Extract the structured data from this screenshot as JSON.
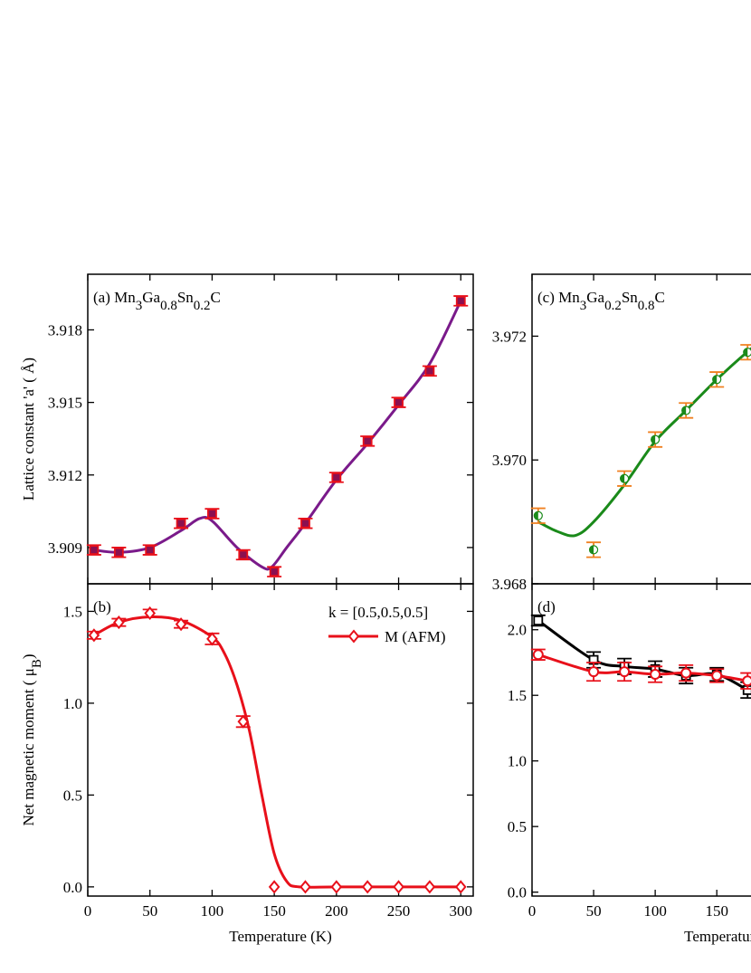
{
  "chart_data": [
    {
      "type": "scatter",
      "title_parts": [
        "(a) Mn",
        "3",
        "Ga",
        "0.8",
        "Sn",
        "0.2",
        "C"
      ],
      "ylabel": "Lattice constant 'a' ( Å)",
      "xlim": [
        0,
        310
      ],
      "xticks": [
        0,
        50,
        100,
        150,
        200,
        250,
        300
      ],
      "xtick_labels": false,
      "ylim": [
        3.9075,
        3.9203
      ],
      "yticks": [
        3.909,
        3.912,
        3.915,
        3.918
      ],
      "series": [
        {
          "color": "#e8101a",
          "marker": "square",
          "marker_fill": "#8b1050",
          "x": [
            5,
            25,
            50,
            75,
            100,
            125,
            150,
            175,
            200,
            225,
            250,
            275,
            300
          ],
          "values": [
            3.9089,
            3.9088,
            3.9089,
            3.91,
            3.9104,
            3.9087,
            3.908,
            3.91,
            3.9119,
            3.9134,
            3.915,
            3.9163,
            3.9192
          ],
          "errors": [
            0.0002,
            0.0002,
            0.0002,
            0.0002,
            0.0002,
            0.0002,
            0.0002,
            0.0002,
            0.0002,
            0.0002,
            0.0002,
            0.0002,
            0.0002
          ],
          "fit": {
            "color": "#7a1a8a",
            "x": [
              5,
              25,
              50,
              75,
              90,
              100,
              120,
              140,
              148,
              160,
              175,
              200,
              225,
              250,
              275,
              300
            ],
            "values": [
              3.9089,
              3.9088,
              3.909,
              3.9097,
              3.9102,
              3.9101,
              3.909,
              3.9082,
              3.9082,
              3.909,
              3.91,
              3.9118,
              3.9133,
              3.9149,
              3.9166,
              3.9192
            ]
          }
        }
      ]
    },
    {
      "type": "scatter",
      "title_parts": [
        "(b)"
      ],
      "ylabel_parts": [
        "Net magnetic moment ( μ",
        "B",
        ")"
      ],
      "xlabel": "Temperature (K)",
      "annotation": "k = [0.5,0.5,0.5]",
      "xlim": [
        0,
        310
      ],
      "xticks": [
        0,
        50,
        100,
        150,
        200,
        250,
        300
      ],
      "xtick_labels": true,
      "ylim": [
        -0.05,
        1.65
      ],
      "yticks": [
        {
          "value": 0,
          "label": "0.0"
        },
        0.5,
        {
          "value": 1,
          "label": "1.0"
        },
        1.5
      ],
      "series": [
        {
          "name": "M (AFM)",
          "color": "#e8101a",
          "marker": "diamond",
          "marker_fill": "#ffffff",
          "x": [
            5,
            25,
            50,
            75,
            100,
            125,
            150,
            175,
            200,
            225,
            250,
            275,
            300
          ],
          "values": [
            1.37,
            1.44,
            1.49,
            1.43,
            1.35,
            0.9,
            0,
            0,
            0,
            0,
            0,
            0,
            0
          ],
          "errors": [
            0.02,
            0.02,
            0.02,
            0.02,
            0.03,
            0.03,
            0,
            0,
            0,
            0,
            0,
            0,
            0
          ],
          "fit": {
            "color": "#e8101a",
            "x": [
              5,
              25,
              50,
              75,
              100,
              110,
              120,
              130,
              140,
              150,
              160,
              170,
              200,
              250,
              300
            ],
            "values": [
              1.37,
              1.44,
              1.47,
              1.45,
              1.36,
              1.27,
              1.1,
              0.85,
              0.5,
              0.18,
              0.03,
              0,
              0,
              0,
              0
            ]
          }
        }
      ]
    },
    {
      "type": "scatter",
      "title_parts": [
        "(c) Mn",
        "3",
        "Ga",
        "0.2",
        "Sn",
        "0.8",
        "C"
      ],
      "xlim": [
        0,
        310
      ],
      "xticks": [
        0,
        50,
        100,
        150
      ],
      "xtick_labels": false,
      "ylim": [
        3.968,
        3.973
      ],
      "yticks": [
        3.968,
        {
          "value": 3.97,
          "label": "3.970"
        },
        3.972
      ],
      "series": [
        {
          "color": "#f08020",
          "marker": "half-circle",
          "marker_fill": "#1a8a1a",
          "x": [
            5,
            50,
            75,
            100,
            125,
            150,
            175
          ],
          "values": [
            3.9691,
            3.96855,
            3.9697,
            3.97033,
            3.9708,
            3.9713,
            3.97174
          ],
          "errors": [
            0.00012,
            0.00012,
            0.00012,
            0.00012,
            0.00012,
            0.00012,
            0.00012
          ],
          "fit": {
            "color": "#1a8a1a",
            "x": [
              5,
              20,
              35,
              50,
              75,
              100,
              125,
              150,
              175,
              185
            ],
            "values": [
              3.969,
              3.96885,
              3.96878,
              3.969,
              3.9696,
              3.9703,
              3.9708,
              3.9713,
              3.97175,
              3.9719
            ]
          }
        }
      ]
    },
    {
      "type": "scatter",
      "title_parts": [
        "(d)"
      ],
      "xlabel": "Temperature",
      "xlim": [
        0,
        310
      ],
      "xticks": [
        0,
        50,
        100,
        150
      ],
      "xtick_labels": true,
      "ylim": [
        -0.03,
        2.35
      ],
      "yticks": [
        {
          "value": 0,
          "label": "0.0"
        },
        0.5,
        {
          "value": 1,
          "label": "1.0"
        },
        1.5,
        {
          "value": 2,
          "label": "2.0"
        }
      ],
      "series": [
        {
          "color": "#000000",
          "marker": "square",
          "marker_fill": "#ffffff",
          "x": [
            5,
            50,
            75,
            100,
            125,
            150,
            175
          ],
          "values": [
            2.07,
            1.77,
            1.72,
            1.7,
            1.65,
            1.66,
            1.54
          ],
          "errors": [
            0.04,
            0.06,
            0.06,
            0.06,
            0.06,
            0.05,
            0.06
          ],
          "fit": {
            "color": "#000000",
            "x": [
              5,
              50,
              75,
              100,
              125,
              150,
              175
            ],
            "values": [
              2.07,
              1.77,
              1.72,
              1.7,
              1.65,
              1.66,
              1.54
            ]
          }
        },
        {
          "color": "#e8101a",
          "marker": "circle",
          "marker_fill": "#ffffff",
          "x": [
            5,
            50,
            75,
            100,
            125,
            150,
            175
          ],
          "values": [
            1.81,
            1.68,
            1.68,
            1.66,
            1.67,
            1.65,
            1.61
          ],
          "errors": [
            0.04,
            0.07,
            0.07,
            0.06,
            0.06,
            0.05,
            0.06
          ],
          "fit": {
            "color": "#e8101a",
            "x": [
              5,
              50,
              75,
              100,
              125,
              150,
              175
            ],
            "values": [
              1.81,
              1.68,
              1.68,
              1.66,
              1.67,
              1.65,
              1.61
            ]
          }
        }
      ]
    }
  ]
}
